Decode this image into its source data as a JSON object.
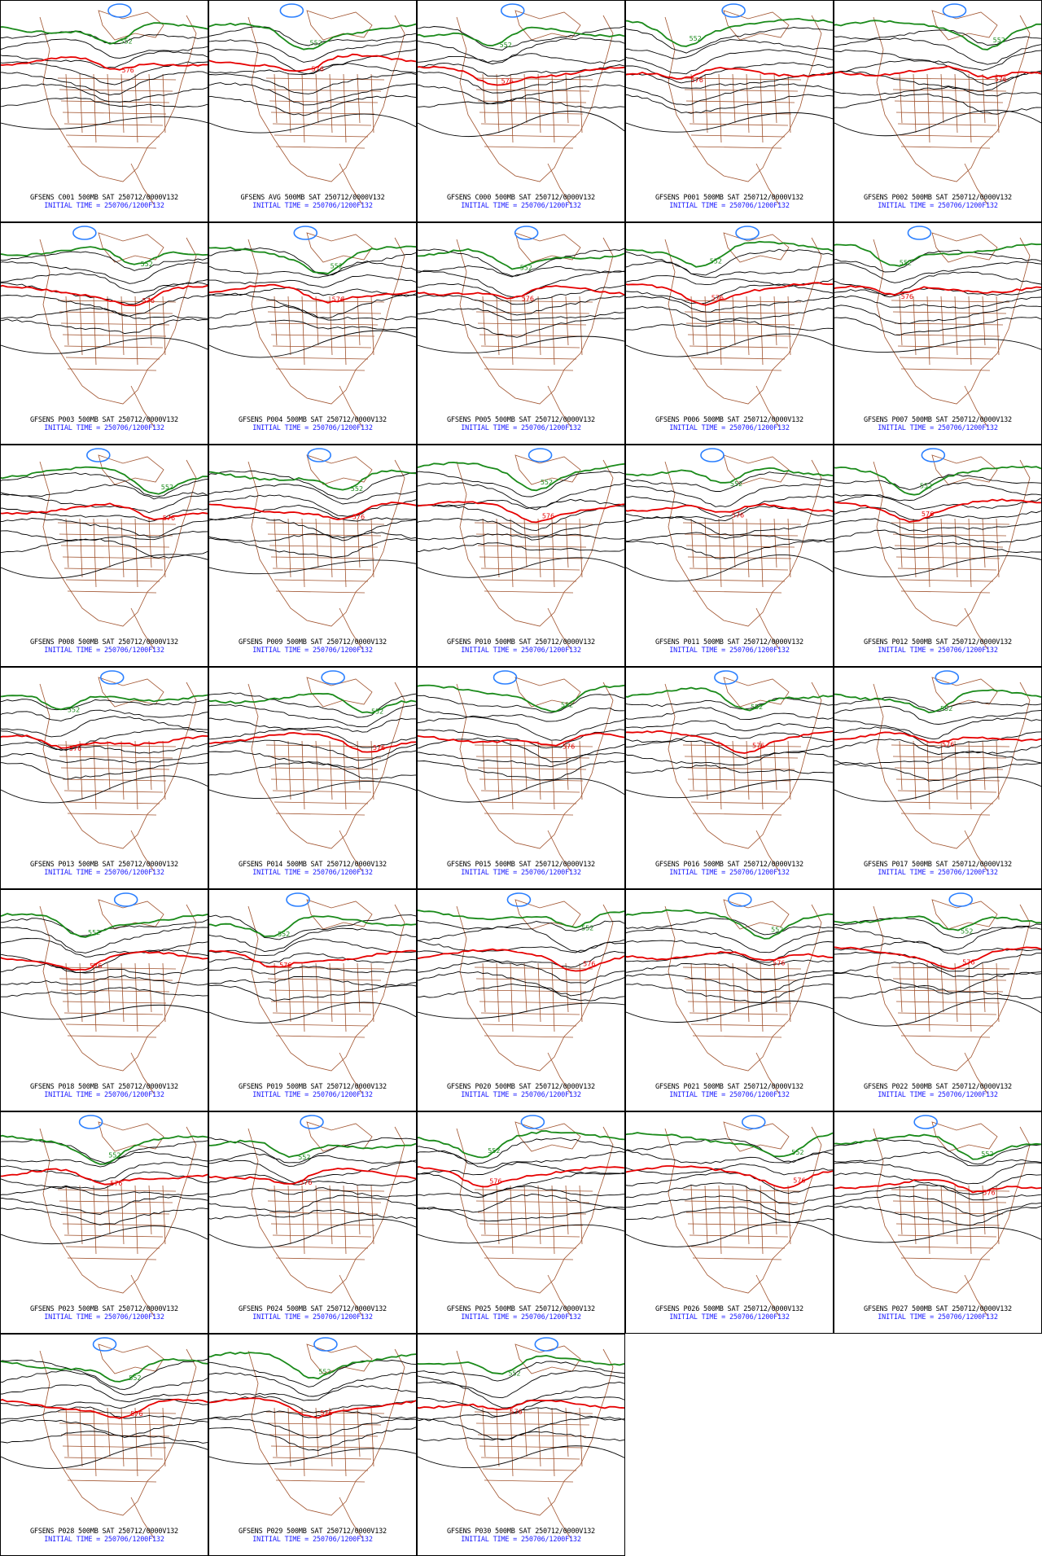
{
  "colors": {
    "height_contour": "#000000",
    "contour_552": "#1a8a1a",
    "contour_576": "#e60000",
    "low_contour": "#2a7fff",
    "map_border": "#a0522d",
    "caption_line1": "#000000",
    "caption_line2": "#1a1aff"
  },
  "contour_labels": {
    "green": "552",
    "red": "576"
  },
  "panels": [
    {
      "line1": "GFSENS C001 500MB SAT 250712/0000V132",
      "line2": "INITIAL TIME = 250706/1200F132"
    },
    {
      "line1": "GFSENS AVG 500MB SAT 250712/0000V132",
      "line2": "INITIAL TIME = 250706/1200F132"
    },
    {
      "line1": "GFSENS C000 500MB SAT 250712/0000V132",
      "line2": "INITIAL TIME = 250706/1200F132"
    },
    {
      "line1": "GFSENS P001 500MB SAT 250712/0000V132",
      "line2": "INITIAL TIME = 250706/1200F132"
    },
    {
      "line1": "GFSENS P002 500MB SAT 250712/0000V132",
      "line2": "INITIAL TIME = 250706/1200F132"
    },
    {
      "line1": "GFSENS P003 500MB SAT 250712/0000V132",
      "line2": "INITIAL TIME = 250706/1200F132"
    },
    {
      "line1": "GFSENS P004 500MB SAT 250712/0000V132",
      "line2": "INITIAL TIME = 250706/1200F132"
    },
    {
      "line1": "GFSENS P005 500MB SAT 250712/0000V132",
      "line2": "INITIAL TIME = 250706/1200F132"
    },
    {
      "line1": "GFSENS P006 500MB SAT 250712/0000V132",
      "line2": "INITIAL TIME = 250706/1200F132"
    },
    {
      "line1": "GFSENS P007 500MB SAT 250712/0000V132",
      "line2": "INITIAL TIME = 250706/1200F132"
    },
    {
      "line1": "GFSENS P008 500MB SAT 250712/0000V132",
      "line2": "INITIAL TIME = 250706/1200F132"
    },
    {
      "line1": "GFSENS P009 500MB SAT 250712/0000V132",
      "line2": "INITIAL TIME = 250706/1200F132"
    },
    {
      "line1": "GFSENS P010 500MB SAT 250712/0000V132",
      "line2": "INITIAL TIME = 250706/1200F132"
    },
    {
      "line1": "GFSENS P011 500MB SAT 250712/0000V132",
      "line2": "INITIAL TIME = 250706/1200F132"
    },
    {
      "line1": "GFSENS P012 500MB SAT 250712/0000V132",
      "line2": "INITIAL TIME = 250706/1200F132"
    },
    {
      "line1": "GFSENS P013 500MB SAT 250712/0000V132",
      "line2": "INITIAL TIME = 250706/1200F132"
    },
    {
      "line1": "GFSENS P014 500MB SAT 250712/0000V132",
      "line2": "INITIAL TIME = 250706/1200F132"
    },
    {
      "line1": "GFSENS P015 500MB SAT 250712/0000V132",
      "line2": "INITIAL TIME = 250706/1200F132"
    },
    {
      "line1": "GFSENS P016 500MB SAT 250712/0000V132",
      "line2": "INITIAL TIME = 250706/1200F132"
    },
    {
      "line1": "GFSENS P017 500MB SAT 250712/0000V132",
      "line2": "INITIAL TIME = 250706/1200F132"
    },
    {
      "line1": "GFSENS P018 500MB SAT 250712/0000V132",
      "line2": "INITIAL TIME = 250706/1200F132"
    },
    {
      "line1": "GFSENS P019 500MB SAT 250712/0000V132",
      "line2": "INITIAL TIME = 250706/1200F132"
    },
    {
      "line1": "GFSENS P020 500MB SAT 250712/0000V132",
      "line2": "INITIAL TIME = 250706/1200F132"
    },
    {
      "line1": "GFSENS P021 500MB SAT 250712/0000V132",
      "line2": "INITIAL TIME = 250706/1200F132"
    },
    {
      "line1": "GFSENS P022 500MB SAT 250712/0000V132",
      "line2": "INITIAL TIME = 250706/1200F132"
    },
    {
      "line1": "GFSENS P023 500MB SAT 250712/0000V132",
      "line2": "INITIAL TIME = 250706/1200F132"
    },
    {
      "line1": "GFSENS P024 500MB SAT 250712/0000V132",
      "line2": "INITIAL TIME = 250706/1200F132"
    },
    {
      "line1": "GFSENS P025 500MB SAT 250712/0000V132",
      "line2": "INITIAL TIME = 250706/1200F132"
    },
    {
      "line1": "GFSENS P026 500MB SAT 250712/0000V132",
      "line2": "INITIAL TIME = 250706/1200F132"
    },
    {
      "line1": "GFSENS P027 500MB SAT 250712/0000V132",
      "line2": "INITIAL TIME = 250706/1200F132"
    },
    {
      "line1": "GFSENS P028 500MB SAT 250712/0000V132",
      "line2": "INITIAL TIME = 250706/1200F132"
    },
    {
      "line1": "GFSENS P029 500MB SAT 250712/0000V132",
      "line2": "INITIAL TIME = 250706/1200F132"
    },
    {
      "line1": "GFSENS P030 500MB SAT 250712/0000V132",
      "line2": "INITIAL TIME = 250706/1200F132"
    }
  ]
}
